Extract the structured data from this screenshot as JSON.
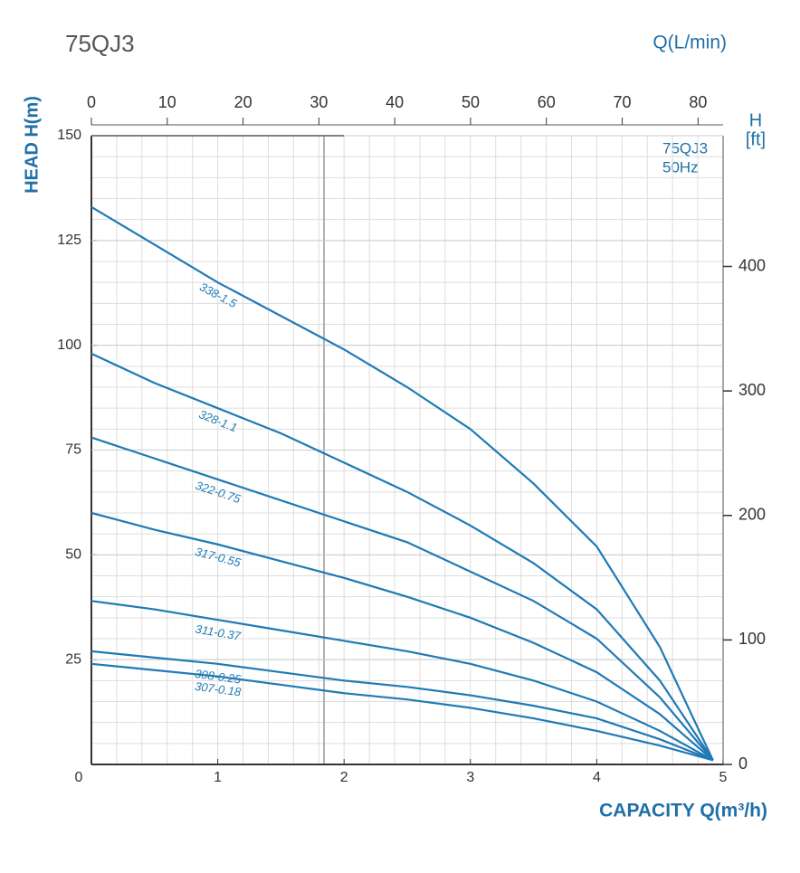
{
  "chart_data": {
    "type": "line",
    "title": "75QJ3",
    "x_label": "CAPACITY Q(m³/h)",
    "x2_label": "Q(L/min)",
    "y_label": "HEAD H(m)",
    "y2_label": [
      "H",
      "[ft]"
    ],
    "annotation": [
      "75QJ3",
      "50Hz"
    ],
    "x": [
      0,
      0.5,
      1,
      1.5,
      2,
      2.5,
      3,
      3.5,
      4,
      4.5,
      4.92
    ],
    "xlim": [
      0,
      5
    ],
    "xticks": [
      0,
      1,
      2,
      3,
      4,
      5
    ],
    "x2lim": [
      0,
      83.3
    ],
    "x2ticks": [
      0,
      10,
      20,
      30,
      40,
      50,
      60,
      70,
      80
    ],
    "ylim": [
      0,
      150
    ],
    "yticks": [
      25,
      50,
      75,
      100,
      125,
      150
    ],
    "y2lim": [
      0,
      505
    ],
    "y2ticks": [
      0,
      100,
      200,
      300,
      400
    ],
    "grid": true,
    "series": [
      {
        "name": "338-1.5",
        "color": "#1f7ab5",
        "values": [
          133,
          124,
          115,
          107,
          99,
          90,
          80,
          67,
          52,
          28,
          1
        ]
      },
      {
        "name": "328-1.1",
        "color": "#1f7ab5",
        "values": [
          98,
          91,
          85,
          79,
          72,
          65,
          57,
          48,
          37,
          20,
          1
        ]
      },
      {
        "name": "322-0.75",
        "color": "#1f7ab5",
        "values": [
          78,
          73,
          68,
          63,
          58,
          53,
          46,
          39,
          30,
          16,
          1
        ]
      },
      {
        "name": "317-0.55",
        "color": "#1f7ab5",
        "values": [
          60,
          56,
          52.5,
          48.5,
          44.5,
          40,
          35,
          29,
          22,
          12,
          1
        ]
      },
      {
        "name": "311-0.37",
        "color": "#1f7ab5",
        "values": [
          39,
          37,
          34.5,
          32,
          29.5,
          27,
          24,
          20,
          15,
          8,
          1
        ]
      },
      {
        "name": "308-0.25",
        "color": "#1f7ab5",
        "values": [
          27,
          25.5,
          24,
          22,
          20,
          18.5,
          16.5,
          14,
          11,
          6,
          1
        ]
      },
      {
        "name": "307-0.18",
        "color": "#1f7ab5",
        "values": [
          24,
          22.5,
          21,
          19,
          17,
          15.5,
          13.5,
          11,
          8,
          4.5,
          1
        ]
      }
    ]
  }
}
